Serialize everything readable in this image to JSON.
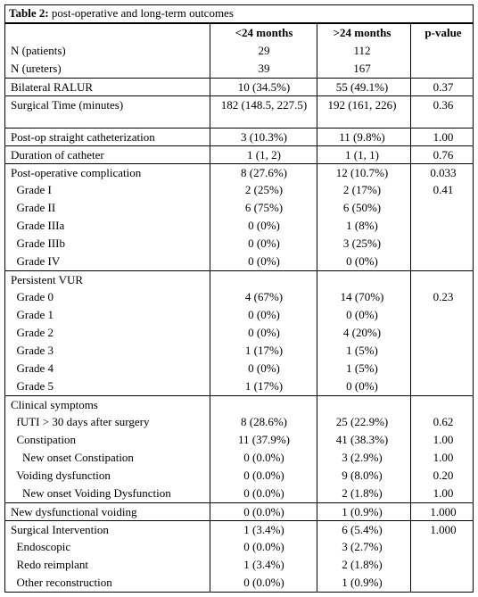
{
  "table": {
    "caption_label": "Table 2:",
    "caption_text": " post-operative and long-term outcomes",
    "headers": [
      "",
      "<24 months",
      ">24 months",
      "p-value"
    ],
    "rows": [
      {
        "label": "N (patients)",
        "a": "29",
        "b": "112",
        "p": ""
      },
      {
        "label": "N (ureters)",
        "a": "39",
        "b": "167",
        "p": ""
      },
      {
        "label": "Bilateral RALUR",
        "a": "10 (34.5%)",
        "b": "55 (49.1%)",
        "p": "0.37"
      },
      {
        "label": "Surgical Time (minutes)",
        "a": "182 (148.5, 227.5)",
        "b": "192 (161, 226)",
        "p": "0.36"
      },
      {
        "label": "Post-op straight catheterization",
        "a": "3 (10.3%)",
        "b": "11 (9.8%)",
        "p": "1.00"
      },
      {
        "label": "Duration of catheter",
        "a": "1 (1, 2)",
        "b": "1 (1, 1)",
        "p": "0.76"
      },
      {
        "label": "Post-operative complication",
        "a": "8 (27.6%)",
        "b": "12 (10.7%)",
        "p": "0.033"
      },
      {
        "label": "  Grade I",
        "a": "2 (25%)",
        "b": "2 (17%)",
        "p": "0.41"
      },
      {
        "label": "  Grade II",
        "a": "6 (75%)",
        "b": "6 (50%)",
        "p": ""
      },
      {
        "label": "  Grade IIIa",
        "a": "0 (0%)",
        "b": "1 (8%)",
        "p": ""
      },
      {
        "label": "  Grade IIIb",
        "a": "0 (0%)",
        "b": "3 (25%)",
        "p": ""
      },
      {
        "label": "  Grade IV",
        "a": "0 (0%)",
        "b": "0 (0%)",
        "p": ""
      },
      {
        "label": "Persistent VUR",
        "a": "",
        "b": "",
        "p": ""
      },
      {
        "label": "  Grade 0",
        "a": "4 (67%)",
        "b": "14 (70%)",
        "p": "0.23"
      },
      {
        "label": "  Grade 1",
        "a": "0 (0%)",
        "b": "0 (0%)",
        "p": ""
      },
      {
        "label": "  Grade 2",
        "a": "0 (0%)",
        "b": "4 (20%)",
        "p": ""
      },
      {
        "label": "  Grade 3",
        "a": "1 (17%)",
        "b": "1 (5%)",
        "p": ""
      },
      {
        "label": "  Grade 4",
        "a": "0 (0%)",
        "b": "1 (5%)",
        "p": ""
      },
      {
        "label": "  Grade 5",
        "a": "1 (17%)",
        "b": "0 (0%)",
        "p": ""
      },
      {
        "label": "Clinical symptoms",
        "a": "",
        "b": "",
        "p": ""
      },
      {
        "label": "  fUTI > 30 days after surgery",
        "a": "8 (28.6%)",
        "b": "25 (22.9%)",
        "p": "0.62"
      },
      {
        "label": "  Constipation",
        "a": "11 (37.9%)",
        "b": "41 (38.3%)",
        "p": "1.00"
      },
      {
        "label": "    New onset Constipation",
        "a": "0 (0.0%)",
        "b": "3 (2.9%)",
        "p": "1.00"
      },
      {
        "label": "  Voiding dysfunction",
        "a": "0 (0.0%)",
        "b": "9 (8.0%)",
        "p": "0.20"
      },
      {
        "label": "    New onset Voiding Dysfunction",
        "a": "0 (0.0%)",
        "b": "2 (1.8%)",
        "p": "1.00"
      },
      {
        "label": "New dysfunctional voiding",
        "a": "0 (0.0%)",
        "b": "1 (0.9%)",
        "p": "1.000"
      },
      {
        "label": "Surgical Intervention",
        "a": "1 (3.4%)",
        "b": "6 (5.4%)",
        "p": "1.000"
      },
      {
        "label": "  Endoscopic",
        "a": "0 (0.0%)",
        "b": "3 (2.7%)",
        "p": ""
      },
      {
        "label": "  Redo reimplant",
        "a": "1 (3.4%)",
        "b": "2 (1.8%)",
        "p": ""
      },
      {
        "label": "  Other reconstruction",
        "a": "0 (0.0%)",
        "b": "1 (0.9%)",
        "p": ""
      }
    ]
  }
}
